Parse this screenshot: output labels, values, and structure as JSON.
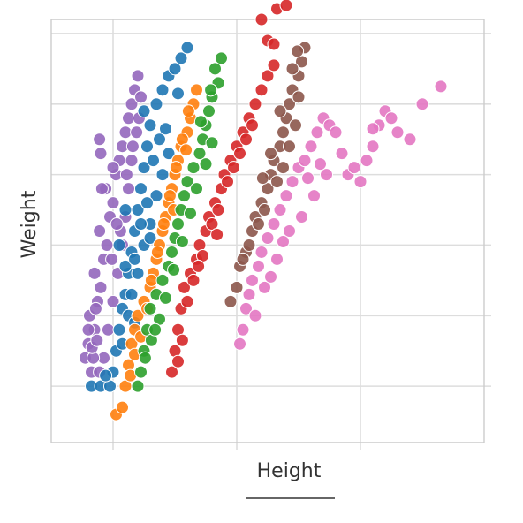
{
  "chart_data": {
    "type": "scatter",
    "xlabel": "Height",
    "ylabel": "Weight",
    "xlim": [
      0,
      7
    ],
    "ylim": [
      0,
      6
    ],
    "x_ticks": [
      1,
      3,
      5
    ],
    "y_ticks": [
      0.8,
      1.8,
      2.8,
      3.8,
      4.8,
      5.8
    ],
    "x_tick_labels": [],
    "y_tick_labels": [],
    "grid": true,
    "legend": "none",
    "series": [
      {
        "color": "#9467bd",
        "points": [
          [
            0.55,
            1.2
          ],
          [
            0.6,
            1.4
          ],
          [
            0.65,
            1.0
          ],
          [
            0.7,
            1.6
          ],
          [
            0.62,
            1.8
          ],
          [
            0.75,
            2.0
          ],
          [
            0.8,
            2.2
          ],
          [
            0.7,
            2.4
          ],
          [
            0.85,
            2.6
          ],
          [
            0.9,
            2.8
          ],
          [
            0.78,
            3.0
          ],
          [
            0.95,
            3.2
          ],
          [
            1.0,
            3.4
          ],
          [
            0.88,
            3.6
          ],
          [
            1.05,
            3.8
          ],
          [
            1.1,
            4.0
          ],
          [
            1.15,
            4.2
          ],
          [
            1.2,
            4.4
          ],
          [
            1.25,
            4.6
          ],
          [
            1.3,
            4.8
          ],
          [
            1.35,
            5.0
          ],
          [
            1.4,
            5.2
          ],
          [
            1.38,
            4.4
          ],
          [
            1.3,
            4.0
          ],
          [
            1.25,
            3.6
          ],
          [
            1.2,
            3.2
          ],
          [
            1.15,
            2.8
          ],
          [
            1.08,
            2.4
          ],
          [
            1.0,
            2.0
          ],
          [
            0.92,
            1.6
          ],
          [
            0.85,
            1.2
          ],
          [
            0.78,
            1.0
          ],
          [
            0.68,
            1.2
          ],
          [
            0.6,
            1.6
          ],
          [
            0.72,
            1.9
          ],
          [
            1.12,
            3.0
          ],
          [
            1.22,
            3.8
          ],
          [
            1.32,
            4.2
          ],
          [
            1.42,
            4.6
          ],
          [
            1.45,
            4.9
          ],
          [
            0.8,
            4.1
          ],
          [
            0.78,
            4.3
          ],
          [
            0.82,
            3.6
          ],
          [
            1.0,
            3.9
          ],
          [
            0.66,
            1.35
          ],
          [
            0.74,
            1.45
          ],
          [
            0.98,
            2.6
          ],
          [
            1.06,
            3.1
          ]
        ]
      },
      {
        "color": "#1f77b4",
        "points": [
          [
            0.65,
            0.8
          ],
          [
            0.8,
            0.8
          ],
          [
            0.95,
            0.8
          ],
          [
            1.0,
            1.0
          ],
          [
            1.05,
            1.3
          ],
          [
            1.1,
            1.6
          ],
          [
            1.15,
            1.9
          ],
          [
            1.2,
            2.1
          ],
          [
            1.25,
            2.4
          ],
          [
            1.3,
            2.7
          ],
          [
            1.35,
            3.0
          ],
          [
            1.4,
            3.3
          ],
          [
            1.45,
            3.6
          ],
          [
            1.5,
            3.9
          ],
          [
            1.55,
            4.2
          ],
          [
            1.6,
            4.5
          ],
          [
            1.7,
            4.8
          ],
          [
            1.8,
            5.0
          ],
          [
            1.9,
            5.2
          ],
          [
            2.0,
            5.3
          ],
          [
            2.1,
            5.45
          ],
          [
            2.2,
            5.6
          ],
          [
            1.1,
            2.8
          ],
          [
            1.2,
            2.5
          ],
          [
            1.3,
            2.1
          ],
          [
            1.4,
            2.4
          ],
          [
            1.5,
            2.8
          ],
          [
            1.6,
            3.1
          ],
          [
            1.7,
            3.5
          ],
          [
            1.8,
            3.8
          ],
          [
            1.9,
            4.1
          ],
          [
            1.75,
            4.3
          ],
          [
            1.65,
            4.0
          ],
          [
            1.55,
            3.4
          ],
          [
            1.45,
            3.1
          ],
          [
            1.35,
            2.6
          ],
          [
            1.25,
            1.8
          ],
          [
            1.15,
            1.4
          ],
          [
            1.5,
            4.7
          ],
          [
            1.2,
            3.3
          ],
          [
            1.35,
            1.7
          ],
          [
            1.6,
            2.9
          ],
          [
            0.88,
            0.95
          ],
          [
            1.85,
            4.45
          ],
          [
            2.05,
            4.95
          ]
        ]
      },
      {
        "color": "#ff7f0e",
        "points": [
          [
            1.05,
            0.4
          ],
          [
            1.15,
            0.5
          ],
          [
            1.2,
            0.8
          ],
          [
            1.25,
            1.1
          ],
          [
            1.3,
            1.4
          ],
          [
            1.35,
            1.6
          ],
          [
            1.4,
            1.8
          ],
          [
            1.5,
            2.0
          ],
          [
            1.6,
            2.2
          ],
          [
            1.65,
            2.4
          ],
          [
            1.7,
            2.6
          ],
          [
            1.75,
            2.8
          ],
          [
            1.8,
            3.0
          ],
          [
            1.85,
            3.2
          ],
          [
            1.9,
            3.4
          ],
          [
            1.95,
            3.6
          ],
          [
            2.0,
            3.8
          ],
          [
            2.05,
            4.0
          ],
          [
            2.1,
            4.2
          ],
          [
            2.2,
            4.4
          ],
          [
            2.25,
            4.6
          ],
          [
            2.3,
            4.8
          ],
          [
            2.35,
            5.0
          ],
          [
            1.45,
            1.5
          ],
          [
            1.55,
            1.9
          ],
          [
            1.62,
            2.3
          ],
          [
            1.72,
            2.7
          ],
          [
            1.82,
            3.1
          ],
          [
            1.92,
            3.5
          ],
          [
            2.02,
            3.9
          ],
          [
            2.12,
            4.3
          ],
          [
            2.22,
            4.7
          ],
          [
            1.28,
            0.95
          ],
          [
            1.35,
            1.25
          ],
          [
            2.18,
            4.15
          ],
          [
            1.98,
            3.3
          ]
        ]
      },
      {
        "color": "#2ca02c",
        "points": [
          [
            1.4,
            0.8
          ],
          [
            1.45,
            1.0
          ],
          [
            1.5,
            1.3
          ],
          [
            1.55,
            1.6
          ],
          [
            1.6,
            1.9
          ],
          [
            1.7,
            2.1
          ],
          [
            1.8,
            2.3
          ],
          [
            1.9,
            2.5
          ],
          [
            1.95,
            2.7
          ],
          [
            2.0,
            2.9
          ],
          [
            2.05,
            3.1
          ],
          [
            2.1,
            3.3
          ],
          [
            2.15,
            3.5
          ],
          [
            2.2,
            3.7
          ],
          [
            2.3,
            3.9
          ],
          [
            2.4,
            4.1
          ],
          [
            2.45,
            4.3
          ],
          [
            2.5,
            4.5
          ],
          [
            2.55,
            4.7
          ],
          [
            2.6,
            4.9
          ],
          [
            2.7,
            5.1
          ],
          [
            2.65,
            5.3
          ],
          [
            2.75,
            5.45
          ],
          [
            1.62,
            1.45
          ],
          [
            1.75,
            1.75
          ],
          [
            1.85,
            2.05
          ],
          [
            2.25,
            3.25
          ],
          [
            2.35,
            3.6
          ],
          [
            2.5,
            3.95
          ],
          [
            2.6,
            4.25
          ],
          [
            2.12,
            2.85
          ],
          [
            1.98,
            2.45
          ],
          [
            1.52,
            1.2
          ],
          [
            2.42,
            4.55
          ],
          [
            2.58,
            5.0
          ],
          [
            1.68,
            1.6
          ]
        ]
      },
      {
        "color": "#d62728",
        "points": [
          [
            1.95,
            1.0
          ],
          [
            2.0,
            1.3
          ],
          [
            2.05,
            1.6
          ],
          [
            2.1,
            1.9
          ],
          [
            2.15,
            2.2
          ],
          [
            2.25,
            2.4
          ],
          [
            2.35,
            2.6
          ],
          [
            2.4,
            2.8
          ],
          [
            2.5,
            3.0
          ],
          [
            2.55,
            3.2
          ],
          [
            2.65,
            3.4
          ],
          [
            2.75,
            3.6
          ],
          [
            2.8,
            3.8
          ],
          [
            2.9,
            4.0
          ],
          [
            3.0,
            4.2
          ],
          [
            3.1,
            4.4
          ],
          [
            3.2,
            4.6
          ],
          [
            3.3,
            4.8
          ],
          [
            3.4,
            5.0
          ],
          [
            3.5,
            5.2
          ],
          [
            3.6,
            5.35
          ],
          [
            3.4,
            6.0
          ],
          [
            3.5,
            5.7
          ],
          [
            3.6,
            5.65
          ],
          [
            3.65,
            6.15
          ],
          [
            3.8,
            6.2
          ],
          [
            2.2,
            2.0
          ],
          [
            2.3,
            2.3
          ],
          [
            2.45,
            2.65
          ],
          [
            2.6,
            3.1
          ],
          [
            2.7,
            3.3
          ],
          [
            2.85,
            3.7
          ],
          [
            2.95,
            3.9
          ],
          [
            3.05,
            4.1
          ],
          [
            3.15,
            4.3
          ],
          [
            3.25,
            4.5
          ],
          [
            2.05,
            1.15
          ],
          [
            2.12,
            1.45
          ],
          [
            2.38,
            2.5
          ],
          [
            2.68,
            2.95
          ]
        ]
      },
      {
        "color": "#8c564b",
        "points": [
          [
            2.9,
            2.0
          ],
          [
            3.0,
            2.2
          ],
          [
            3.05,
            2.5
          ],
          [
            3.15,
            2.7
          ],
          [
            3.25,
            3.0
          ],
          [
            3.3,
            3.2
          ],
          [
            3.4,
            3.4
          ],
          [
            3.5,
            3.6
          ],
          [
            3.55,
            3.8
          ],
          [
            3.6,
            4.0
          ],
          [
            3.7,
            4.2
          ],
          [
            3.75,
            4.4
          ],
          [
            3.8,
            4.6
          ],
          [
            3.85,
            4.8
          ],
          [
            3.9,
            5.0
          ],
          [
            4.0,
            5.2
          ],
          [
            4.05,
            5.4
          ],
          [
            4.1,
            5.6
          ],
          [
            4.0,
            4.9
          ],
          [
            3.95,
            4.5
          ],
          [
            3.85,
            4.2
          ],
          [
            3.75,
            3.9
          ],
          [
            3.65,
            3.7
          ],
          [
            3.45,
            3.3
          ],
          [
            3.35,
            3.1
          ],
          [
            3.2,
            2.8
          ],
          [
            3.1,
            2.6
          ],
          [
            3.7,
            4.7
          ],
          [
            3.9,
            5.3
          ],
          [
            3.98,
            5.55
          ],
          [
            3.55,
            4.1
          ],
          [
            3.42,
            3.75
          ]
        ]
      },
      {
        "color": "#e377c2",
        "points": [
          [
            3.05,
            1.4
          ],
          [
            3.1,
            1.6
          ],
          [
            3.15,
            1.9
          ],
          [
            3.2,
            2.1
          ],
          [
            3.25,
            2.3
          ],
          [
            3.35,
            2.5
          ],
          [
            3.4,
            2.7
          ],
          [
            3.5,
            2.9
          ],
          [
            3.6,
            3.1
          ],
          [
            3.7,
            3.3
          ],
          [
            3.8,
            3.5
          ],
          [
            3.9,
            3.7
          ],
          [
            4.0,
            3.9
          ],
          [
            4.1,
            4.0
          ],
          [
            4.2,
            4.2
          ],
          [
            4.3,
            4.4
          ],
          [
            4.4,
            4.6
          ],
          [
            4.5,
            4.5
          ],
          [
            4.6,
            4.4
          ],
          [
            4.7,
            4.1
          ],
          [
            4.8,
            3.8
          ],
          [
            5.0,
            3.7
          ],
          [
            5.1,
            4.0
          ],
          [
            5.2,
            4.2
          ],
          [
            5.3,
            4.5
          ],
          [
            5.4,
            4.7
          ],
          [
            5.6,
            4.4
          ],
          [
            5.8,
            4.3
          ],
          [
            6.0,
            4.8
          ],
          [
            6.3,
            5.05
          ],
          [
            3.3,
            1.8
          ],
          [
            3.45,
            2.2
          ],
          [
            3.65,
            2.6
          ],
          [
            3.85,
            3.0
          ],
          [
            4.05,
            3.2
          ],
          [
            4.25,
            3.5
          ],
          [
            4.45,
            3.8
          ],
          [
            5.5,
            4.6
          ],
          [
            4.15,
            3.75
          ],
          [
            3.55,
            2.35
          ],
          [
            5.2,
            4.45
          ],
          [
            4.9,
            3.9
          ],
          [
            3.75,
            2.85
          ],
          [
            4.35,
            3.95
          ]
        ]
      }
    ]
  }
}
